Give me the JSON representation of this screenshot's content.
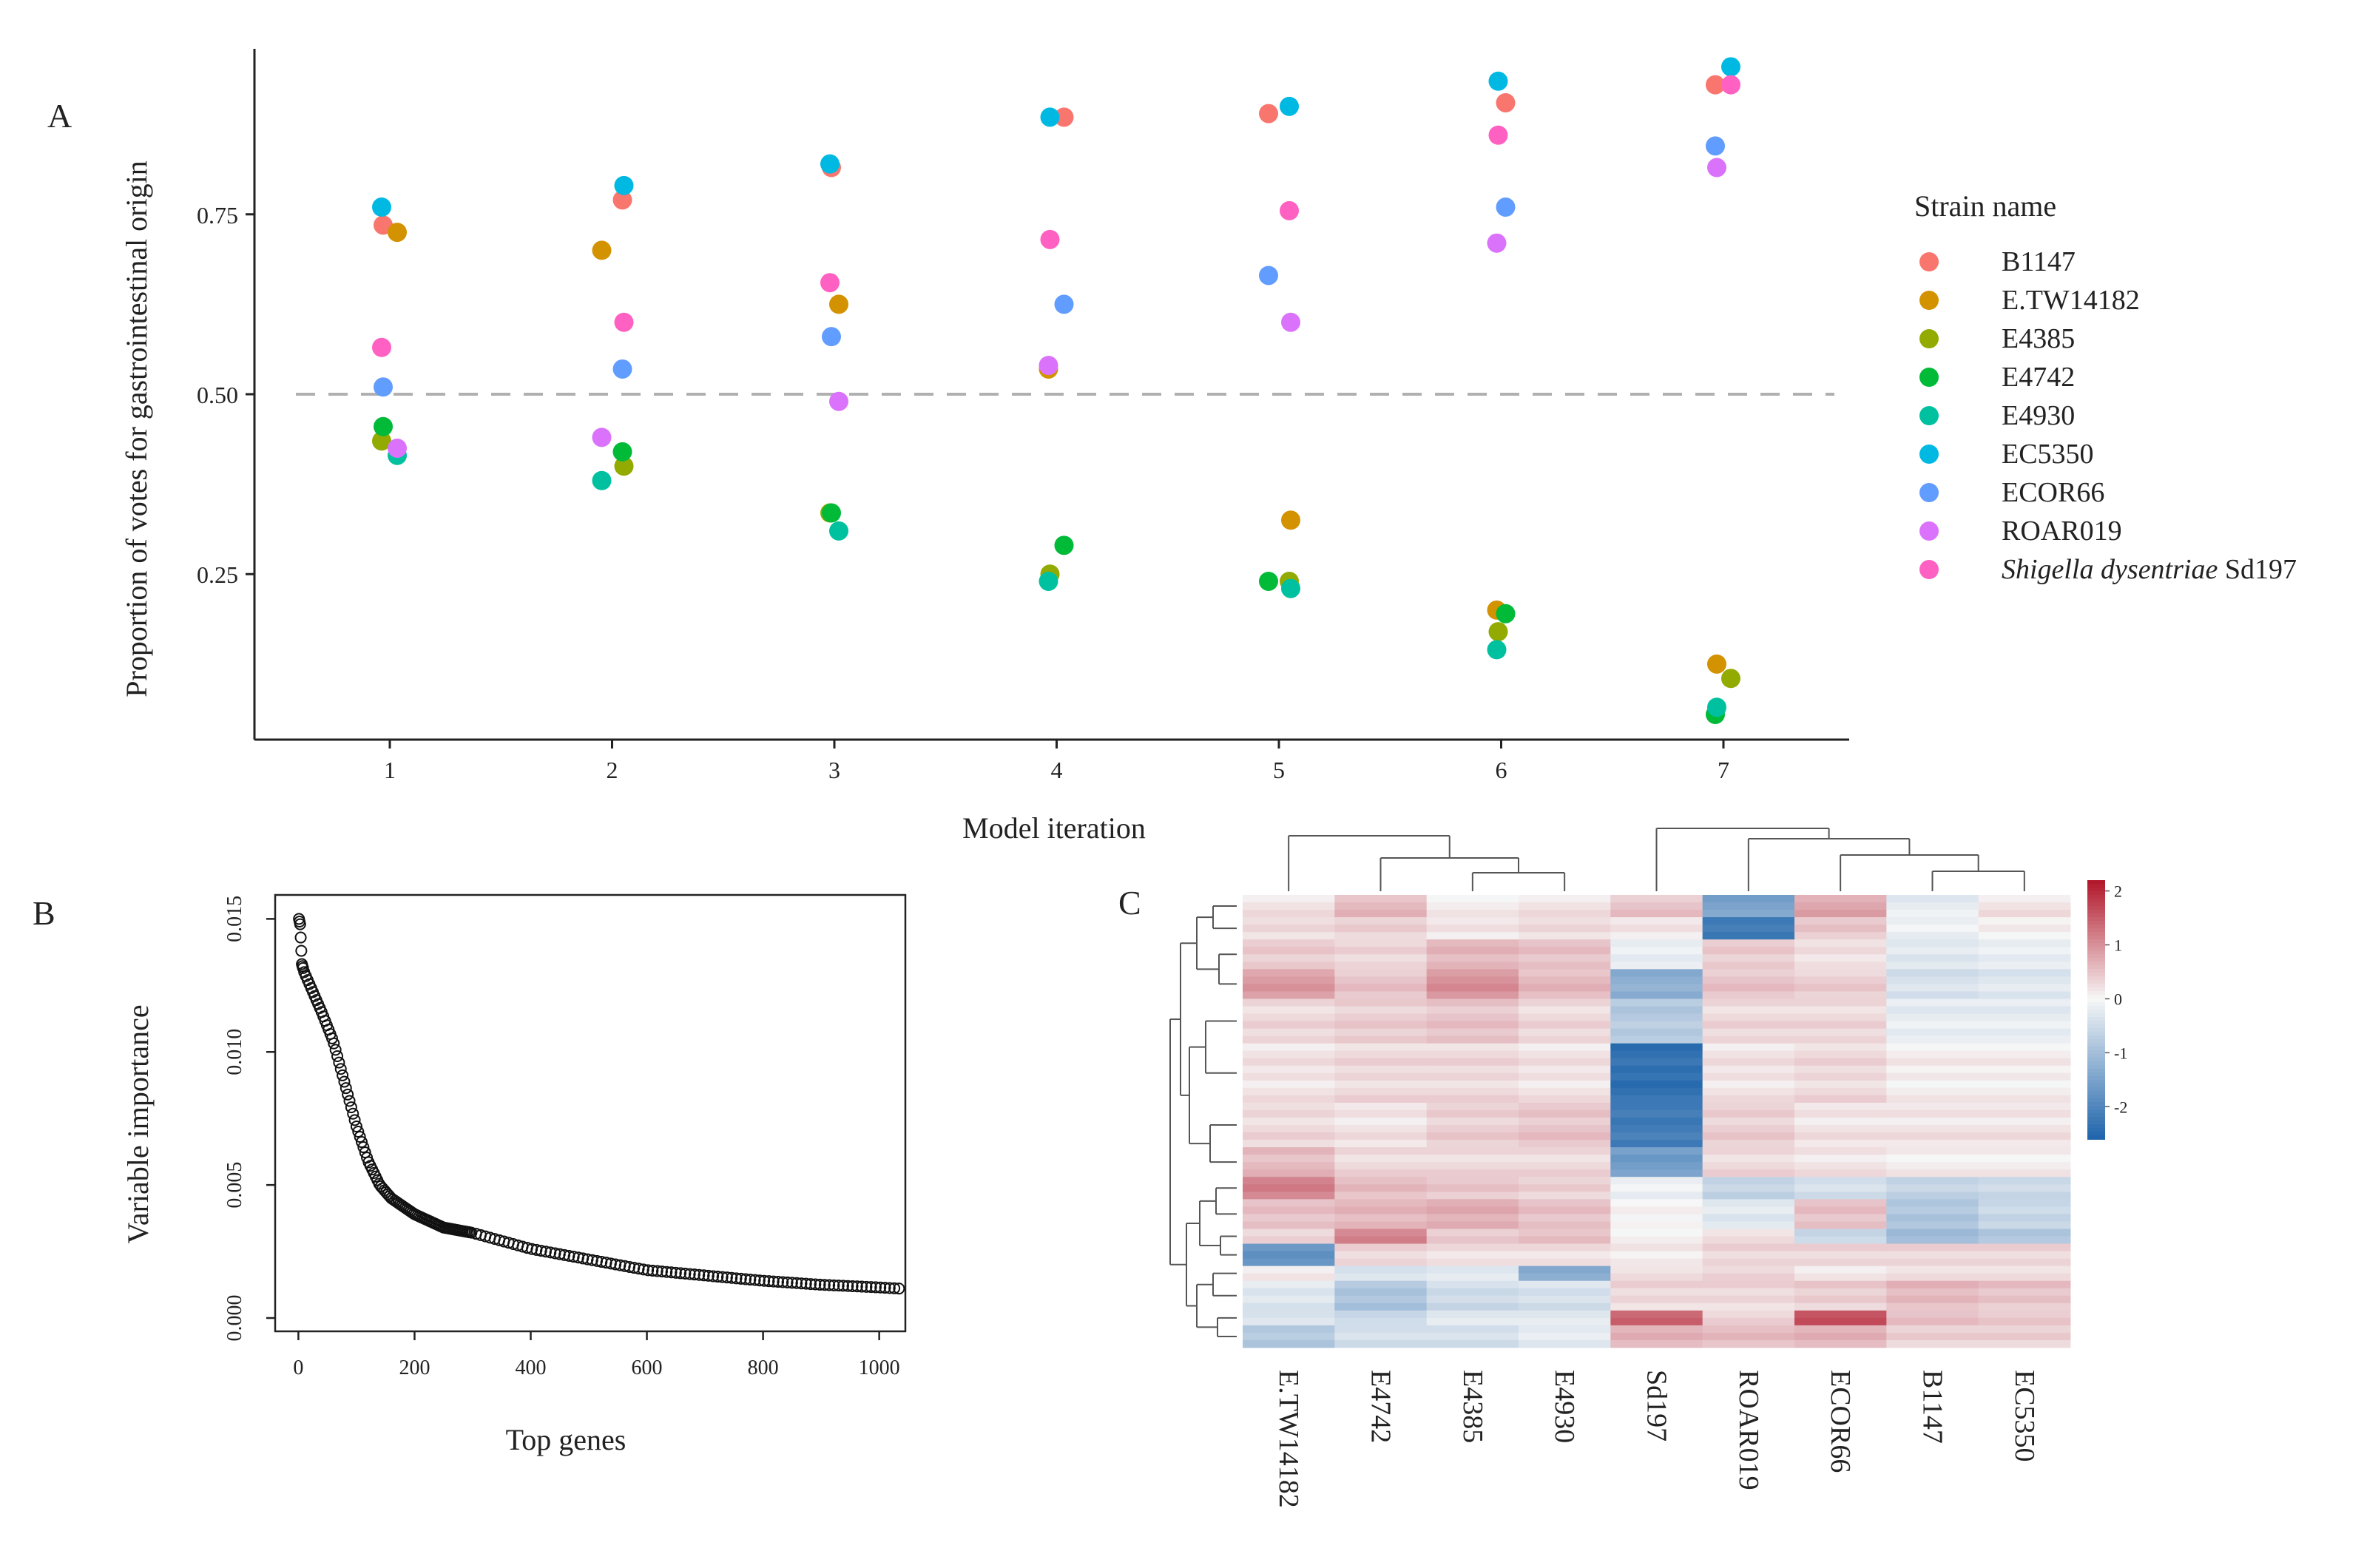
{
  "chart_data": [
    {
      "panel": "A",
      "type": "scatter",
      "xlabel": "Model iteration",
      "ylabel": "Proportion of votes for gastrointestinal origin",
      "x_ticks": [
        "1",
        "2",
        "3",
        "4",
        "5",
        "6",
        "7"
      ],
      "y_ticks": [
        "0.25",
        "0.50",
        "0.75"
      ],
      "ylim": [
        0.02,
        0.98
      ],
      "reference_line": {
        "y": 0.5,
        "style": "dashed"
      },
      "grid": false,
      "legend": {
        "title": "Strain name",
        "position": "right",
        "entries": [
          {
            "name": "B1147",
            "color": "#F8766D"
          },
          {
            "name": "E.TW14182",
            "color": "#D39200"
          },
          {
            "name": "E4385",
            "color": "#93AA00"
          },
          {
            "name": "E4742",
            "color": "#00BA38"
          },
          {
            "name": "E4930",
            "color": "#00C19F"
          },
          {
            "name": "EC5350",
            "color": "#00B9E3"
          },
          {
            "name": "ECOR66",
            "color": "#619CFF"
          },
          {
            "name": "ROAR019",
            "color": "#DB72FB"
          },
          {
            "name": "Sd197",
            "italic_prefix": "Shigella dysentriae",
            "color": "#FF61C3"
          }
        ]
      },
      "series": [
        {
          "name": "B1147",
          "values": [
            0.735,
            0.77,
            0.815,
            0.885,
            0.89,
            0.905,
            0.93
          ]
        },
        {
          "name": "E.TW14182",
          "values": [
            0.725,
            0.7,
            0.625,
            0.535,
            0.325,
            0.2,
            0.125
          ]
        },
        {
          "name": "E4385",
          "values": [
            0.435,
            0.4,
            0.335,
            0.25,
            0.24,
            0.17,
            0.105
          ]
        },
        {
          "name": "E4742",
          "values": [
            0.455,
            0.42,
            0.335,
            0.29,
            0.24,
            0.195,
            0.055
          ]
        },
        {
          "name": "E4930",
          "values": [
            0.415,
            0.38,
            0.31,
            0.24,
            0.23,
            0.145,
            0.065
          ]
        },
        {
          "name": "EC5350",
          "values": [
            0.76,
            0.79,
            0.82,
            0.885,
            0.9,
            0.935,
            0.955
          ]
        },
        {
          "name": "ECOR66",
          "values": [
            0.51,
            0.535,
            0.58,
            0.625,
            0.665,
            0.76,
            0.845
          ]
        },
        {
          "name": "ROAR019",
          "values": [
            0.425,
            0.44,
            0.49,
            0.54,
            0.6,
            0.71,
            0.815
          ]
        },
        {
          "name": "Sd197",
          "values": [
            0.565,
            0.6,
            0.655,
            0.715,
            0.755,
            0.86,
            0.93
          ]
        }
      ]
    },
    {
      "panel": "B",
      "type": "scatter",
      "xlabel": "Top genes",
      "ylabel": "Variable importance",
      "x_ticks": [
        "0",
        "200",
        "400",
        "600",
        "800",
        "1000"
      ],
      "y_ticks": [
        "0.000",
        "0.005",
        "0.010",
        "0.015"
      ],
      "xlim": [
        -40,
        1045
      ],
      "ylim": [
        -0.0005,
        0.0159
      ],
      "marker": "open-circle",
      "curve": {
        "x": [
          1,
          3,
          6,
          10,
          20,
          40,
          60,
          80,
          100,
          120,
          140,
          160,
          200,
          250,
          300,
          400,
          500,
          600,
          700,
          800,
          900,
          1000,
          1040
        ],
        "y": [
          0.015,
          0.0148,
          0.0133,
          0.013,
          0.0125,
          0.0115,
          0.0104,
          0.0088,
          0.0072,
          0.0059,
          0.005,
          0.0045,
          0.0039,
          0.0034,
          0.0032,
          0.0026,
          0.0022,
          0.0018,
          0.0016,
          0.0014,
          0.00125,
          0.00115,
          0.0011
        ]
      }
    },
    {
      "panel": "C",
      "type": "heatmap",
      "columns": [
        "E.TW14182",
        "E4742",
        "E4385",
        "E4930",
        "Sd197",
        "ROAR019",
        "ECOR66",
        "B1147",
        "EC5350"
      ],
      "color_scale": {
        "min": -2.6,
        "max": 2.2,
        "low": "#2166AC",
        "mid": "#F7F7F7",
        "high": "#B2182B"
      },
      "colorbar_ticks": [
        "2",
        "1",
        "0",
        "-1",
        "-2"
      ],
      "colorbar_values": [
        2,
        1,
        0,
        -1,
        -2
      ],
      "row_blocks": [
        {
          "rows": 3,
          "values": [
            0.2,
            0.6,
            0.1,
            0.2,
            0.5,
            -1.5,
            0.8,
            -0.2,
            0.2
          ]
        },
        {
          "rows": 3,
          "values": [
            0.3,
            0.4,
            0.2,
            0.3,
            0.2,
            -2.2,
            0.5,
            -0.1,
            0.1
          ]
        },
        {
          "rows": 4,
          "values": [
            0.4,
            0.3,
            0.6,
            0.5,
            -0.2,
            0.4,
            0.2,
            -0.3,
            -0.2
          ]
        },
        {
          "rows": 4,
          "values": [
            0.9,
            0.5,
            1.0,
            0.6,
            -1.3,
            0.5,
            0.4,
            -0.4,
            -0.3
          ]
        },
        {
          "rows": 6,
          "values": [
            0.3,
            0.4,
            0.5,
            0.3,
            -0.8,
            0.3,
            0.3,
            -0.2,
            -0.2
          ]
        },
        {
          "rows": 8,
          "values": [
            0.2,
            0.3,
            0.3,
            0.2,
            -2.4,
            0.2,
            0.3,
            0.1,
            0.1
          ]
        },
        {
          "rows": 6,
          "values": [
            0.3,
            0.2,
            0.4,
            0.5,
            -2.2,
            0.4,
            0.2,
            0.2,
            0.2
          ]
        },
        {
          "rows": 4,
          "values": [
            0.6,
            0.3,
            0.3,
            0.3,
            -1.6,
            0.3,
            0.2,
            0.1,
            0.1
          ]
        },
        {
          "rows": 3,
          "values": [
            1.2,
            0.6,
            0.5,
            0.4,
            -0.1,
            -0.6,
            -0.4,
            -0.6,
            -0.5
          ]
        },
        {
          "rows": 4,
          "values": [
            0.5,
            0.6,
            0.7,
            0.5,
            0.0,
            -0.3,
            0.5,
            -0.9,
            -0.6
          ]
        },
        {
          "rows": 2,
          "values": [
            0.4,
            1.2,
            0.5,
            0.6,
            0.1,
            0.3,
            -0.5,
            -1.0,
            -0.8
          ]
        },
        {
          "rows": 3,
          "values": [
            -1.8,
            0.3,
            0.2,
            0.2,
            0.1,
            0.3,
            0.3,
            0.3,
            0.3
          ]
        },
        {
          "rows": 2,
          "values": [
            0.2,
            -0.3,
            -0.2,
            -1.3,
            0.3,
            0.4,
            0.2,
            0.3,
            0.3
          ]
        },
        {
          "rows": 4,
          "values": [
            -0.3,
            -0.9,
            -0.5,
            -0.4,
            0.3,
            0.3,
            0.4,
            0.6,
            0.5
          ]
        },
        {
          "rows": 2,
          "values": [
            -0.4,
            -0.6,
            -0.3,
            -0.3,
            1.4,
            0.3,
            1.6,
            0.5,
            0.4
          ]
        },
        {
          "rows": 3,
          "values": [
            -0.8,
            -0.4,
            -0.4,
            -0.2,
            0.7,
            0.6,
            0.7,
            0.4,
            0.4
          ]
        }
      ]
    }
  ],
  "panels": {
    "a_label": "A",
    "b_label": "B",
    "c_label": "C"
  }
}
